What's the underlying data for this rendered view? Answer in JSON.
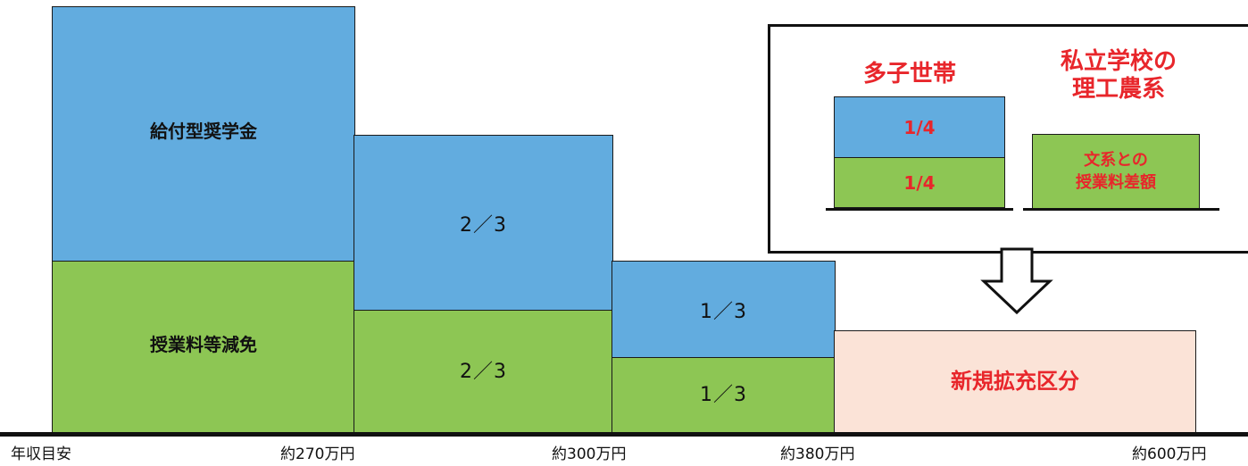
{
  "blocks": {
    "grant_scholarship": "給付型奨学金",
    "tuition_reduction": "授業料等減免",
    "tier2_blue": "2／3",
    "tier2_green": "2／3",
    "tier3_blue": "1／3",
    "tier3_green": "1／3",
    "new_category": "新規拡充区分"
  },
  "axis": {
    "label": "年収目安",
    "ticks": [
      "約270万円",
      "約300万円",
      "約380万円",
      "約600万円"
    ]
  },
  "inset": {
    "multi_child_title": "多子世帯",
    "multi_child_blue": "1/4",
    "multi_child_green": "1/4",
    "private_science_title_line1": "私立学校の",
    "private_science_title_line2": "理工農系",
    "private_science_block_line1": "文系との",
    "private_science_block_line2": "授業料差額"
  },
  "colors": {
    "scholarship": "#62acdf",
    "tuition": "#8dc654",
    "new": "#fbe3d7",
    "accent_red": "#e8262b"
  }
}
